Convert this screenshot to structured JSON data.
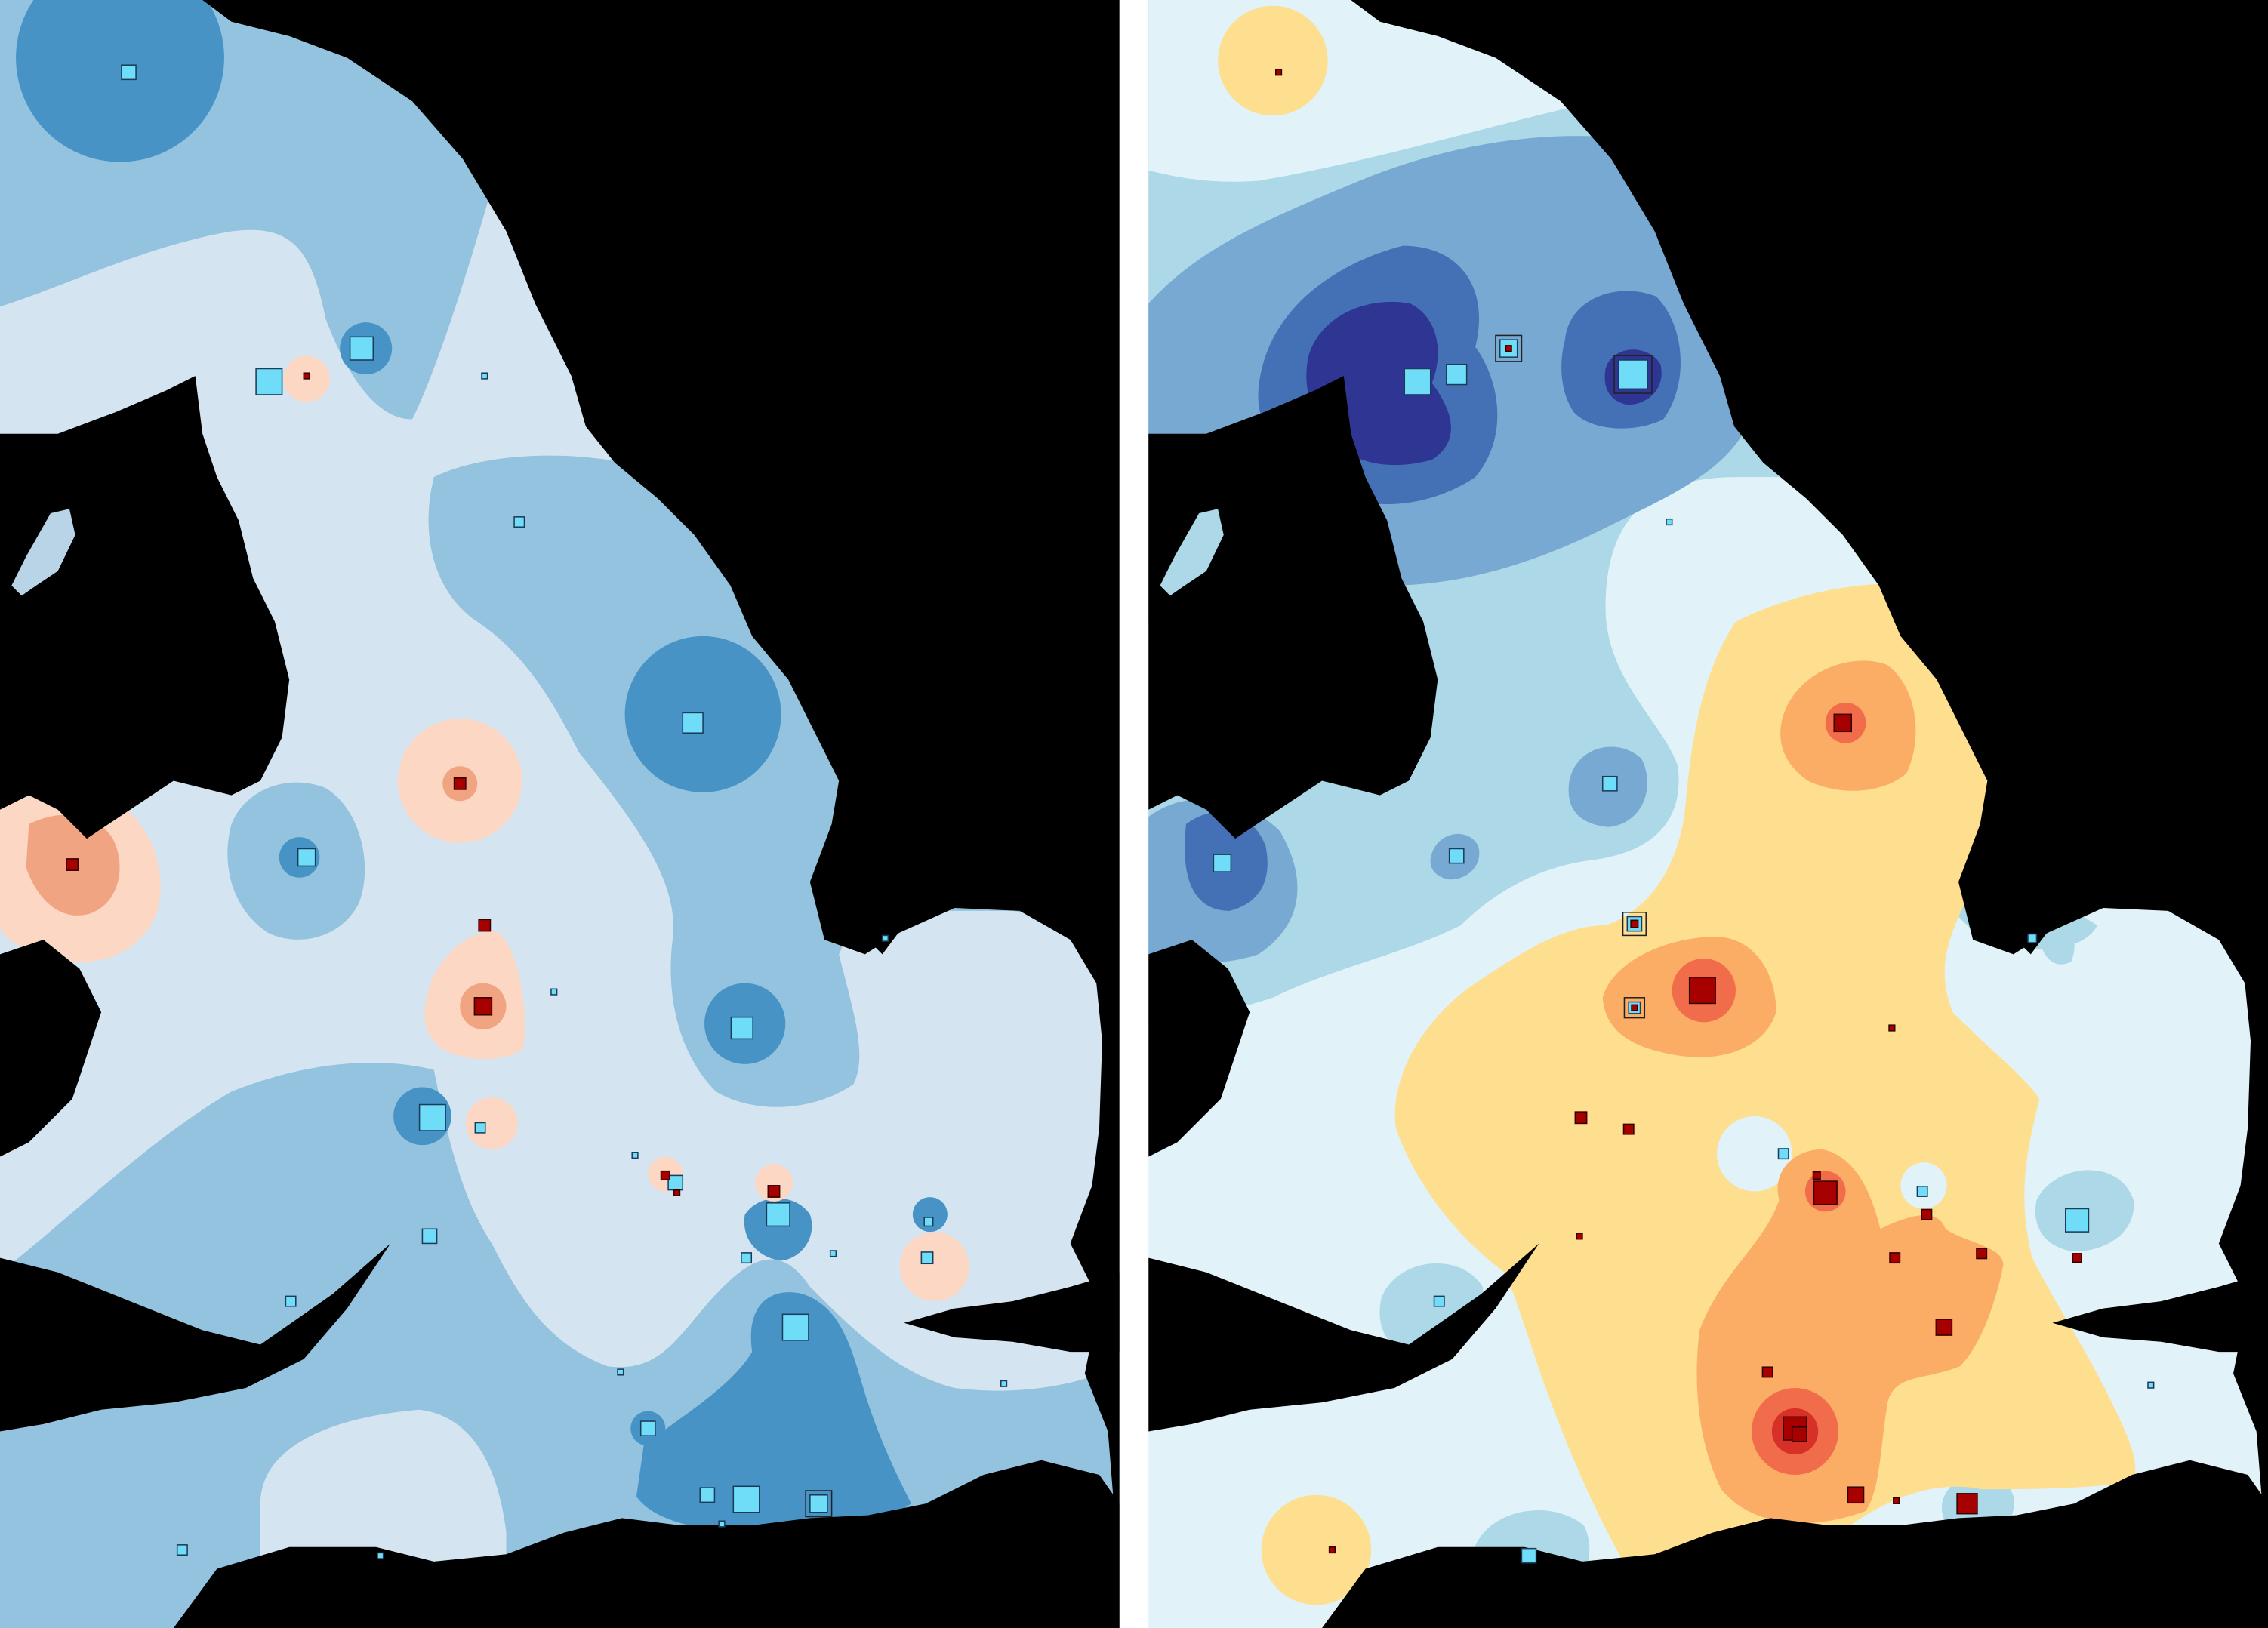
{
  "figure": {
    "panel_count": 2,
    "panels": [
      {
        "id": "left",
        "palette": "blue-dominant",
        "colors": {
          "sea": "#000000",
          "blue1": "#d4e5f1",
          "blue2": "#93c3de",
          "blue3": "#4793c5",
          "peach": "#fcd7c3",
          "salmon": "#f1a482",
          "square_blue": "#6fdcf8",
          "square_red": "#a60000"
        },
        "markers": {
          "blue_squares": 34,
          "red_squares": 8
        }
      },
      {
        "id": "right",
        "palette": "diverging",
        "colors": {
          "sea": "#000000",
          "pale": "#e1f3f9",
          "light": "#acd8e8",
          "mid": "#77a9d2",
          "deep": "#4471b5",
          "navy": "#2e3592",
          "cream": "#fddf8f",
          "orange": "#fbad65",
          "red_orange": "#f06c4b",
          "dark_red": "#d73027",
          "square_blue": "#6fdcf8",
          "square_red": "#a60000"
        },
        "markers": {
          "blue_squares": 18,
          "red_squares": 25
        }
      }
    ]
  }
}
